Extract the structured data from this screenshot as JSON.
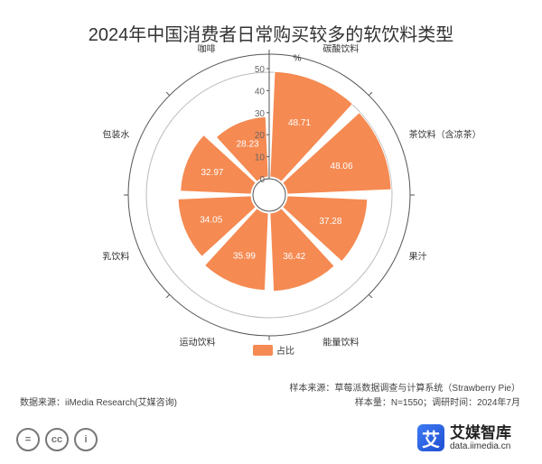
{
  "title": "2024年中国消费者日常购买较多的软饮料类型",
  "chart_data": {
    "type": "bar",
    "layout": "polar-radial",
    "categories": [
      "碳酸饮料",
      "茶饮料（含凉茶）",
      "果汁",
      "能量饮料",
      "运动饮料",
      "乳饮料",
      "包装水",
      "咖啡"
    ],
    "series": [
      {
        "name": "占比",
        "values": [
          48.71,
          48.06,
          37.28,
          36.42,
          35.99,
          34.05,
          32.97,
          28.23
        ]
      }
    ],
    "radial_axis": {
      "unit": "%",
      "min": 0,
      "max": 50,
      "ticks": [
        0,
        10,
        20,
        30,
        40,
        50
      ]
    },
    "color": "#F58A52",
    "legend": "bottom-center"
  },
  "source": {
    "sample_source": "样本来源：草莓派数据调查与计算系统（Strawberry Pie）",
    "sample_size": "样本量：N=1550；调研时间：2024年7月",
    "data_source": "数据来源：iiMedia Research(艾媒咨询)"
  },
  "brand": {
    "logo_char": "艾",
    "name": "艾媒智库",
    "url": "data.iimedia.cn"
  },
  "license": [
    "=",
    "cc",
    "i"
  ]
}
